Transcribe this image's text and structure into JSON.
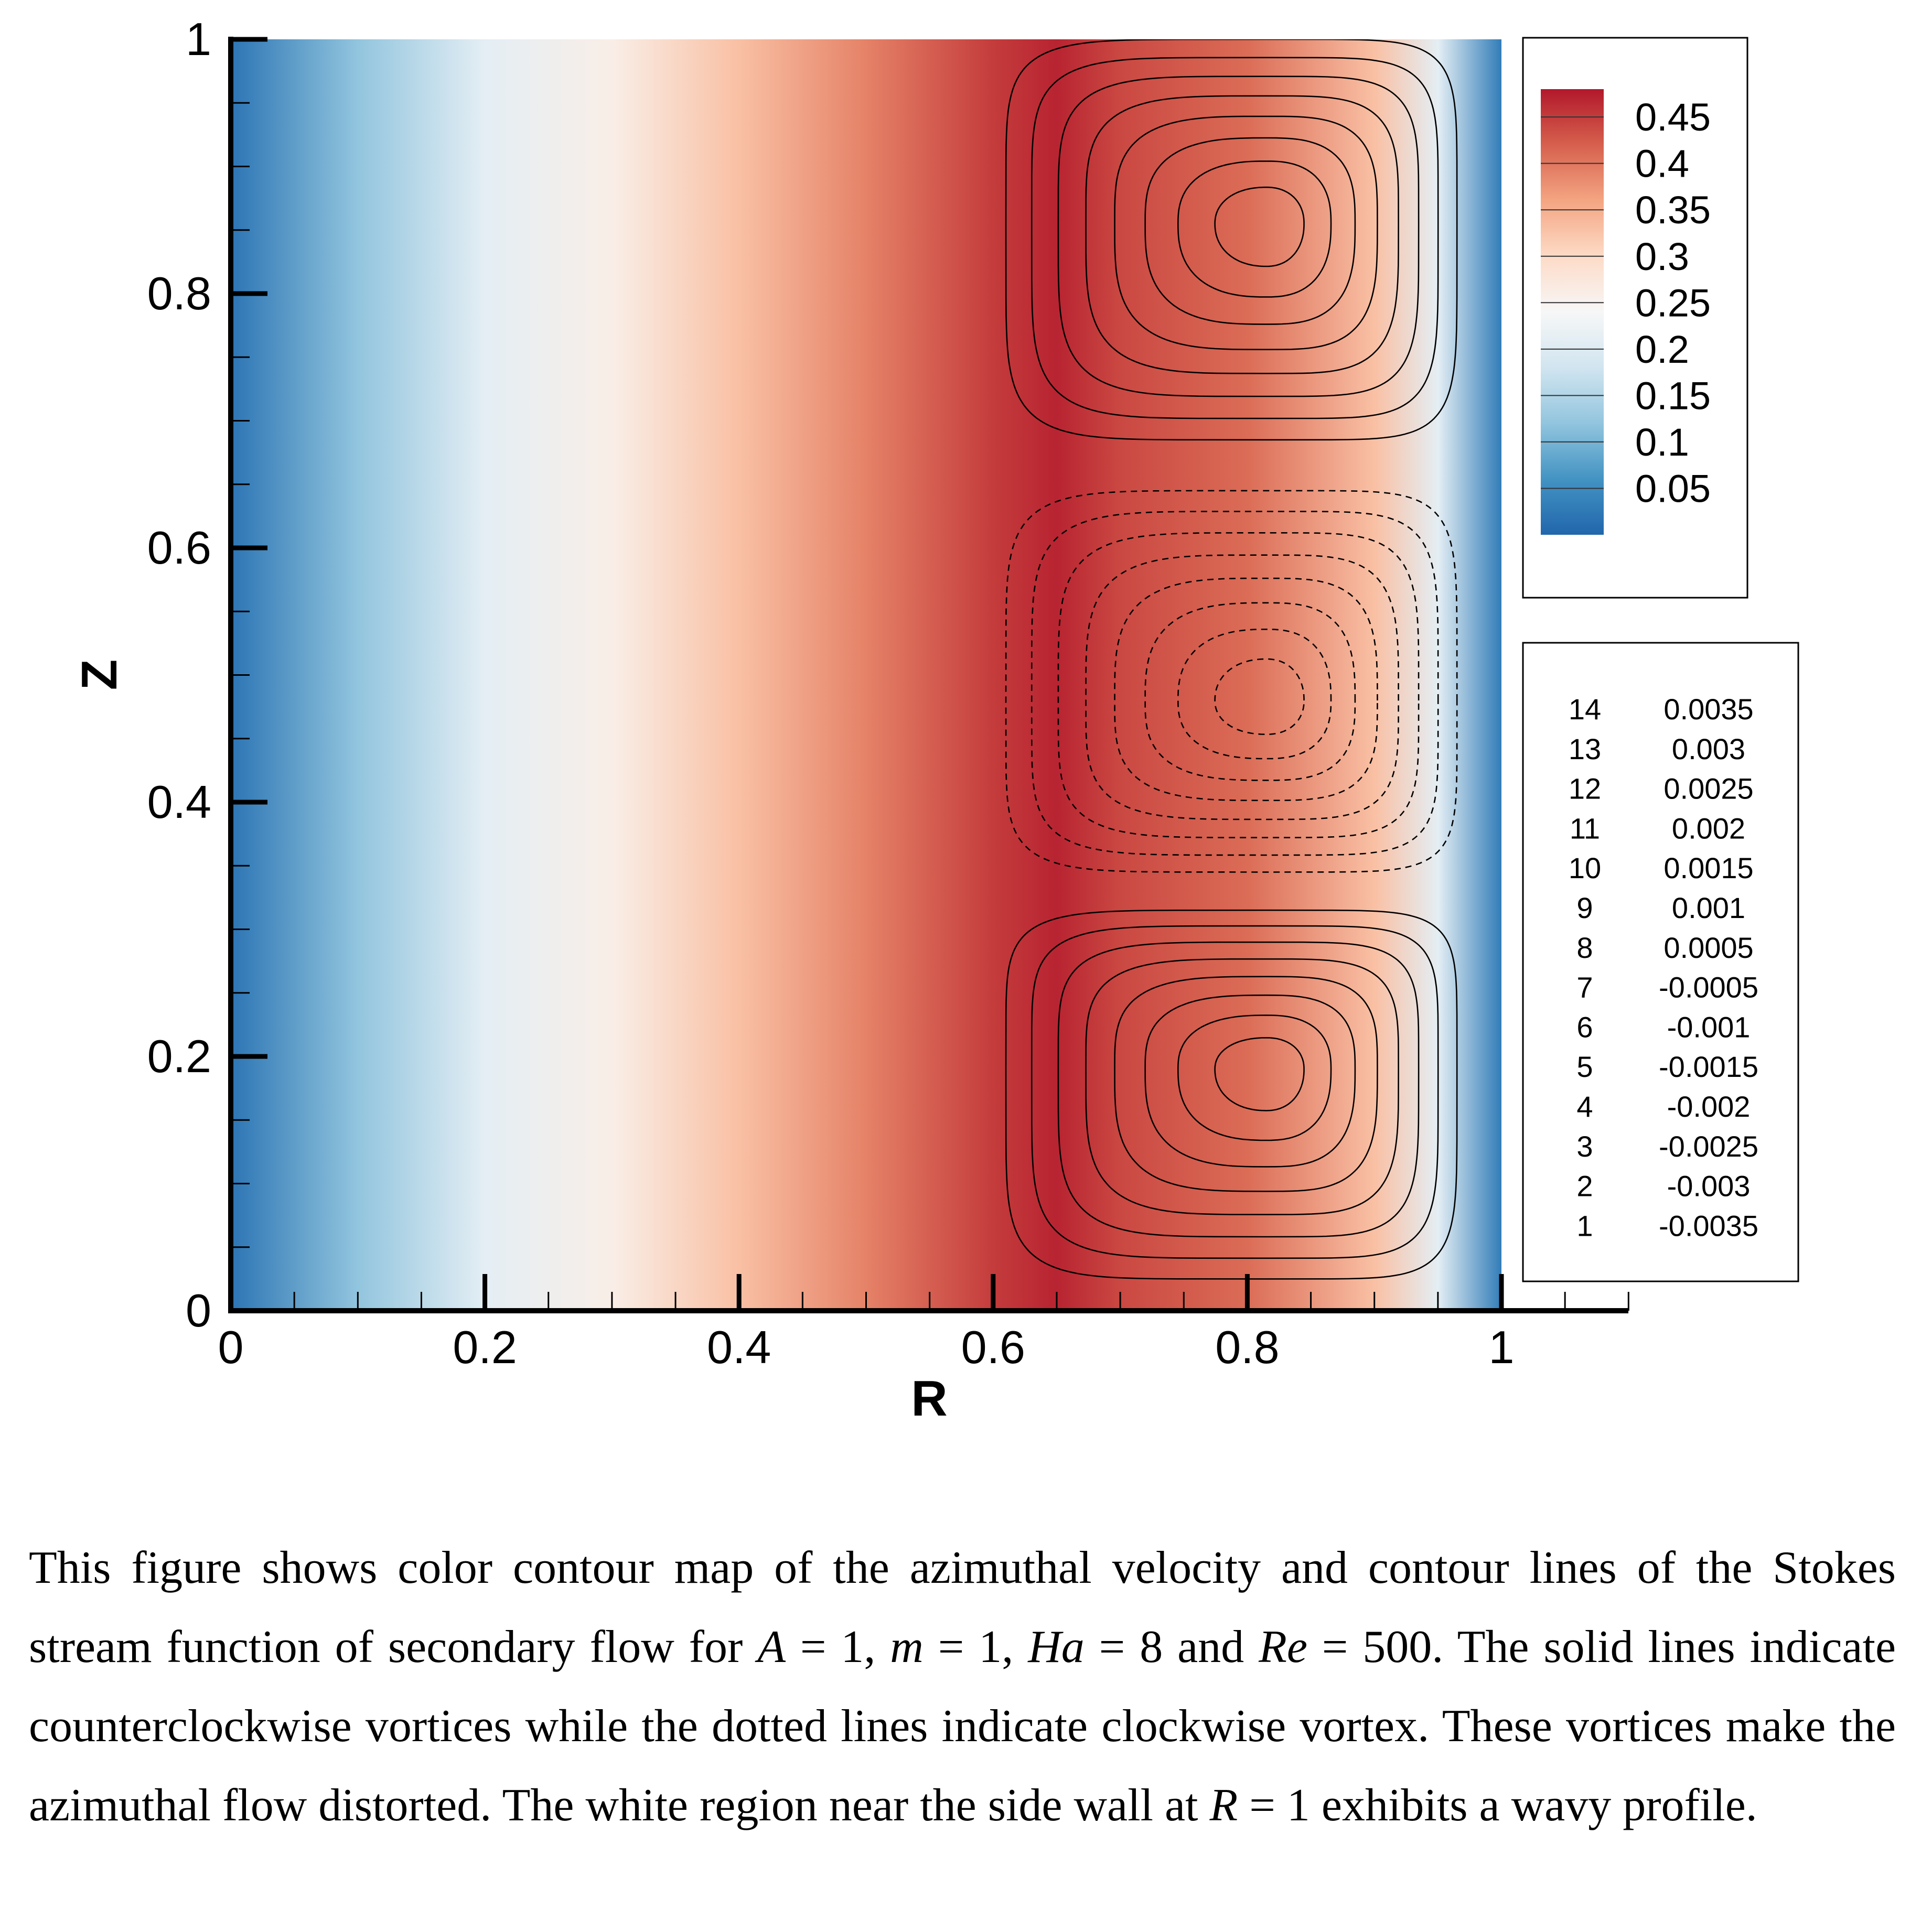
{
  "chart_data": {
    "type": "heatmap",
    "title": "",
    "field": "azimuthal velocity",
    "xlabel": "R",
    "ylabel": "Z",
    "xlim": [
      0,
      1.1
    ],
    "ylim": [
      0,
      1
    ],
    "x_ticks": [
      "0",
      "0.2",
      "0.4",
      "0.6",
      "0.8",
      "1"
    ],
    "y_ticks": [
      "0",
      "0.2",
      "0.4",
      "0.6",
      "0.8",
      "1"
    ],
    "colorbar": {
      "levels": [
        "0.45",
        "0.4",
        "0.35",
        "0.3",
        "0.25",
        "0.2",
        "0.15",
        "0.1",
        "0.05"
      ],
      "range": [
        0.0,
        0.48
      ],
      "colors": [
        "#2166ac",
        "#4393c3",
        "#92c5de",
        "#d1e5f0",
        "#f7f7f7",
        "#fddbc7",
        "#f4a582",
        "#d6604d",
        "#b2182b"
      ]
    },
    "velocity_profile": {
      "r": [
        0.0,
        0.1,
        0.2,
        0.3,
        0.4,
        0.5,
        0.6,
        0.65,
        0.7,
        0.8,
        0.9,
        0.95,
        1.0
      ],
      "v": [
        0.02,
        0.12,
        0.21,
        0.26,
        0.33,
        0.39,
        0.45,
        0.47,
        0.44,
        0.41,
        0.33,
        0.21,
        0.03
      ]
    },
    "stream_function_legend": [
      {
        "level": "14",
        "value": "0.0035"
      },
      {
        "level": "13",
        "value": "0.003"
      },
      {
        "level": "12",
        "value": "0.0025"
      },
      {
        "level": "11",
        "value": "0.002"
      },
      {
        "level": "10",
        "value": "0.0015"
      },
      {
        "level": "9",
        "value": "0.001"
      },
      {
        "level": "8",
        "value": "0.0005"
      },
      {
        "level": "7",
        "value": "-0.0005"
      },
      {
        "level": "6",
        "value": "-0.001"
      },
      {
        "level": "5",
        "value": "-0.0015"
      },
      {
        "level": "4",
        "value": "-0.002"
      },
      {
        "level": "3",
        "value": "-0.0025"
      },
      {
        "level": "2",
        "value": "-0.003"
      },
      {
        "level": "1",
        "value": "-0.0035"
      }
    ],
    "vortices": [
      {
        "name": "upper",
        "center": [
          0.815,
          0.855
        ],
        "r_range": [
          0.61,
          0.965
        ],
        "z_range": [
          0.685,
          1.0
        ],
        "line_style": "solid",
        "contours": 8
      },
      {
        "name": "middle",
        "center": [
          0.815,
          0.48
        ],
        "r_range": [
          0.61,
          0.965
        ],
        "z_range": [
          0.345,
          0.645
        ],
        "line_style": "dashed",
        "contours": 8
      },
      {
        "name": "lower",
        "center": [
          0.815,
          0.19
        ],
        "r_range": [
          0.61,
          0.965
        ],
        "z_range": [
          0.025,
          0.315
        ],
        "line_style": "solid",
        "contours": 8
      }
    ]
  },
  "caption": {
    "lead": "This figure shows color contour map of the azimuthal velocity and contour lines of the Stokes stream function of secondary flow for ",
    "A": "A",
    "eq_a": " = 1, ",
    "m": "m",
    "eq_m": " = 1, ",
    "Ha": "Ha",
    "eq_ha": " = 8 and ",
    "Re": "Re",
    "eq_re": " = 500. The solid lines indicate counterclockwise vortices while the dotted lines indicate clockwise vortex. These vortices make the azimuthal flow distorted. The white region near the side wall at ",
    "R": "R",
    "tail": " = 1 exhibits a wavy profile."
  }
}
